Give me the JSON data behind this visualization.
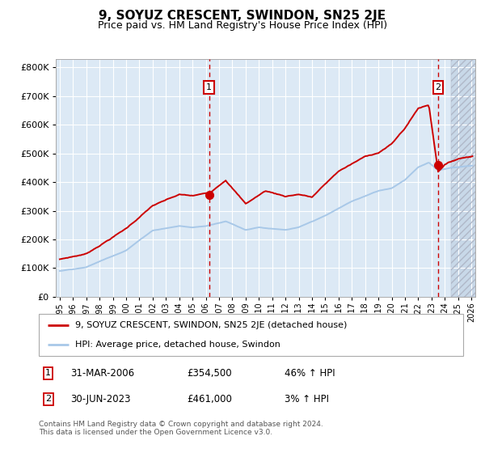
{
  "title": "9, SOYUZ CRESCENT, SWINDON, SN25 2JE",
  "subtitle": "Price paid vs. HM Land Registry's House Price Index (HPI)",
  "ytick_values": [
    0,
    100000,
    200000,
    300000,
    400000,
    500000,
    600000,
    700000,
    800000
  ],
  "ylim": [
    0,
    830000
  ],
  "xlim_start": 1995.0,
  "xlim_end": 2026.0,
  "hpi_color": "#a8c8e8",
  "price_color": "#cc0000",
  "marker1_x": 2006.25,
  "marker1_y": 354500,
  "marker2_x": 2023.5,
  "marker2_y": 461000,
  "legend_label1": "9, SOYUZ CRESCENT, SWINDON, SN25 2JE (detached house)",
  "legend_label2": "HPI: Average price, detached house, Swindon",
  "table_row1": [
    "1",
    "31-MAR-2006",
    "£354,500",
    "46% ↑ HPI"
  ],
  "table_row2": [
    "2",
    "30-JUN-2023",
    "£461,000",
    "3% ↑ HPI"
  ],
  "footer": "Contains HM Land Registry data © Crown copyright and database right 2024.\nThis data is licensed under the Open Government Licence v3.0.",
  "bg_color": "#dce9f5",
  "hatch_region_start": 2024.5,
  "grid_color": "#ffffff",
  "xtick_years": [
    1995,
    1996,
    1997,
    1998,
    1999,
    2000,
    2001,
    2002,
    2003,
    2004,
    2005,
    2006,
    2007,
    2008,
    2009,
    2010,
    2011,
    2012,
    2013,
    2014,
    2015,
    2016,
    2017,
    2018,
    2019,
    2020,
    2021,
    2022,
    2023,
    2024,
    2025,
    2026
  ]
}
